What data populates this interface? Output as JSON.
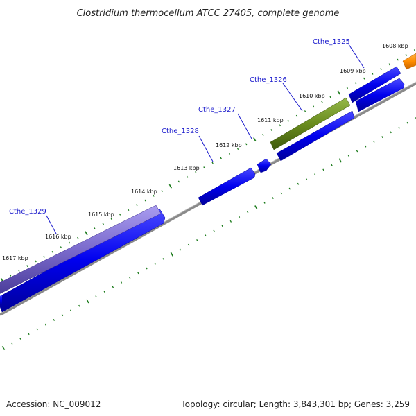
{
  "title": "Clostridium thermocellum ATCC 27405, complete genome",
  "footer": {
    "accession": "Accession: NC_009012",
    "summary": "Topology: circular; Length: 3,843,301 bp; Genes: 3,259"
  },
  "colors": {
    "cds": "#0000ee",
    "cds_edge": "#000099",
    "gene_1329": "#7a6acc",
    "gene_1326": "#6a8c1e",
    "gene_1325": "#ff8c00",
    "backbone": "#888888",
    "ticks": "#1a7a1a"
  },
  "scale_labels": [
    {
      "label": "1608 kbp"
    },
    {
      "label": "1609 kbp"
    },
    {
      "label": "1610 kbp"
    },
    {
      "label": "1611 kbp"
    },
    {
      "label": "1612 kbp"
    },
    {
      "label": "1613 kbp"
    },
    {
      "label": "1614 kbp"
    },
    {
      "label": "1615 kbp"
    },
    {
      "label": "1616 kbp"
    },
    {
      "label": "1617 kbp"
    }
  ],
  "gene_labels": [
    {
      "label": "Cthe_1325"
    },
    {
      "label": "Cthe_1326"
    },
    {
      "label": "Cthe_1327"
    },
    {
      "label": "Cthe_1328"
    },
    {
      "label": "Cthe_1329"
    }
  ]
}
